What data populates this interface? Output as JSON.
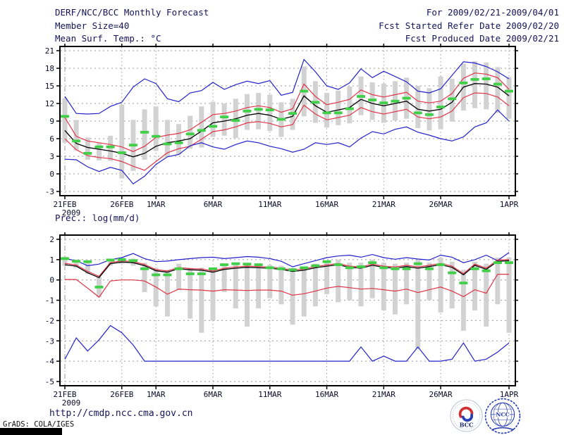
{
  "header": {
    "title": "DERF/NCC/BCC Monthly Forecast",
    "member_size": "Member Size=40",
    "for_period": "For 2009/02/21-2009/04/01",
    "fcst_started": "Fcst Started Refer Date 2009/02/20",
    "fcst_produced": "Fcst Produced Date 2009/02/21"
  },
  "footer": {
    "url": "http://cmdp.ncc.cma.gov.cn",
    "grads_credit": "GrADS: COLA/IGES",
    "bcc_label": "BCC",
    "ncc_label": "NCC"
  },
  "palette": {
    "blue": "#2222cc",
    "red": "#e03448",
    "black": "#000000",
    "green": "#3fd048",
    "gray": "#d2d2d2",
    "grid": "#9a9a9a",
    "frame": "#000000",
    "text": "#0a0a28",
    "header_text": "#14145a"
  },
  "x_axis": {
    "n_days": 40,
    "start_label_sub": "2009",
    "ticks": [
      {
        "label": "21FEB",
        "day": 0,
        "sub": "2009"
      },
      {
        "label": "26FEB",
        "day": 5
      },
      {
        "label": "1MAR",
        "day": 8
      },
      {
        "label": "6MAR",
        "day": 13
      },
      {
        "label": "11MAR",
        "day": 18
      },
      {
        "label": "16MAR",
        "day": 23
      },
      {
        "label": "21MAR",
        "day": 28
      },
      {
        "label": "26MAR",
        "day": 33
      },
      {
        "label": "1APR",
        "day": 39
      }
    ]
  },
  "chart_data": [
    {
      "type": "line",
      "name": "temperature",
      "title": "Mean Surf. Temp.: °C",
      "yticks": [
        21,
        18,
        15,
        12,
        9,
        6,
        3,
        0,
        -3
      ],
      "ylim": [
        -3,
        21
      ],
      "grid": true,
      "series": [
        {
          "name": "ensemble-max",
          "color": "blue",
          "style": "line",
          "values": [
            13.2,
            10.3,
            10.2,
            10.3,
            11.5,
            12.2,
            14.8,
            16.2,
            15.4,
            12.8,
            12.3,
            13.8,
            14.2,
            15.6,
            14.4,
            15.2,
            15.8,
            15.4,
            15.9,
            13.4,
            13.9,
            19.5,
            17.4,
            15.0,
            14.4,
            15.5,
            17.9,
            16.4,
            17.5,
            16.6,
            15.7,
            14.1,
            13.8,
            14.5,
            16.8,
            19.1,
            18.9,
            18.3,
            17.4,
            16.2
          ]
        },
        {
          "name": "spread-upper",
          "color": "red",
          "style": "line",
          "values": [
            9.6,
            6.4,
            5.6,
            5.3,
            5.0,
            4.6,
            3.8,
            4.7,
            6.2,
            6.6,
            6.9,
            7.5,
            8.8,
            10.1,
            10.3,
            10.7,
            11.3,
            11.6,
            11.3,
            10.5,
            11.1,
            15.3,
            13.2,
            11.8,
            12.2,
            12.7,
            14.3,
            13.5,
            13.1,
            13.5,
            13.9,
            12.4,
            12.1,
            12.4,
            13.7,
            16.3,
            17.2,
            17.0,
            16.4,
            14.4
          ]
        },
        {
          "name": "ensemble-mean",
          "color": "black",
          "style": "line",
          "values": [
            7.4,
            5.2,
            4.5,
            4.2,
            3.9,
            3.5,
            2.9,
            3.5,
            4.7,
            5.3,
            5.6,
            6.0,
            7.3,
            8.7,
            9.0,
            9.4,
            10.0,
            10.3,
            10.0,
            9.3,
            9.8,
            13.3,
            11.6,
            10.5,
            10.9,
            11.3,
            12.7,
            12.0,
            11.6,
            12.0,
            12.4,
            11.0,
            10.7,
            11.0,
            12.2,
            14.8,
            15.4,
            15.3,
            14.8,
            13.3
          ]
        },
        {
          "name": "spread-lower",
          "color": "red",
          "style": "line",
          "values": [
            6.0,
            4.1,
            3.1,
            2.8,
            2.6,
            2.1,
            1.3,
            0.6,
            2.1,
            3.6,
            4.3,
            4.7,
            5.9,
            7.2,
            7.5,
            8.0,
            8.7,
            8.9,
            8.6,
            8.0,
            8.4,
            11.7,
            10.2,
            9.2,
            9.6,
            10.0,
            11.3,
            10.6,
            10.2,
            10.6,
            11.0,
            9.7,
            9.4,
            9.7,
            10.7,
            13.0,
            13.8,
            13.7,
            13.1,
            11.6
          ]
        },
        {
          "name": "ensemble-min",
          "color": "blue",
          "style": "line",
          "values": [
            2.5,
            2.4,
            1.2,
            0.4,
            1.1,
            0.6,
            -1.7,
            -0.4,
            1.6,
            2.9,
            3.3,
            4.8,
            5.3,
            4.6,
            4.2,
            5.0,
            5.6,
            5.3,
            4.7,
            4.3,
            3.7,
            4.2,
            5.3,
            5.0,
            5.3,
            4.6,
            6.1,
            7.2,
            6.8,
            7.6,
            8.0,
            7.1,
            6.6,
            6.0,
            5.6,
            6.3,
            8.0,
            8.7,
            10.9,
            9.0
          ]
        },
        {
          "name": "observation-marker",
          "color": "green",
          "style": "dash-marker",
          "values": [
            9.8,
            5.6,
            3.5,
            4.6,
            4.6,
            3.6,
            4.9,
            7.1,
            6.4,
            5.1,
            5.3,
            6.8,
            7.4,
            8.1,
            9.7,
            9.1,
            10.7,
            11.0,
            10.9,
            9.3,
            10.3,
            14.1,
            12.2,
            10.4,
            10.4,
            11.1,
            13.2,
            12.6,
            12.1,
            12.4,
            12.9,
            10.4,
            10.1,
            11.4,
            12.8,
            15.5,
            16.1,
            16.2,
            15.3,
            14.1
          ]
        }
      ],
      "bars": {
        "name": "ensemble-spread",
        "color": "gray",
        "low": [
          5.3,
          4.0,
          2.4,
          2.3,
          2.2,
          -0.8,
          0.5,
          2.4,
          3.9,
          2.9,
          3.3,
          4.3,
          4.5,
          6.3,
          6.5,
          6.1,
          7.5,
          7.6,
          7.3,
          6.3,
          7.5,
          9.8,
          8.7,
          7.9,
          8.3,
          8.6,
          10.0,
          9.2,
          8.7,
          9.1,
          9.4,
          7.8,
          7.4,
          7.6,
          8.9,
          10.8,
          11.2,
          11.0,
          10.4,
          9.4
        ],
        "high": [
          12.9,
          9.2,
          6.2,
          5.3,
          6.5,
          11.8,
          9.2,
          11.0,
          11.5,
          9.2,
          8.5,
          9.9,
          11.5,
          12.3,
          12.0,
          12.8,
          13.6,
          13.8,
          13.5,
          12.2,
          12.8,
          18.3,
          15.8,
          13.8,
          14.2,
          14.9,
          16.6,
          15.6,
          15.4,
          15.8,
          16.4,
          15.0,
          14.6,
          16.6,
          16.2,
          18.8,
          19.2,
          19.0,
          18.2,
          16.5
        ]
      }
    },
    {
      "type": "line",
      "name": "precipitation",
      "title": "Prec.: log(mm/d)",
      "yticks": [
        2,
        1,
        0,
        -1,
        -2,
        -3,
        -4,
        -5
      ],
      "ylim": [
        -5,
        2
      ],
      "grid": true,
      "series": [
        {
          "name": "ensemble-max",
          "color": "blue",
          "style": "line",
          "values": [
            1.05,
            0.95,
            0.7,
            0.78,
            1.0,
            1.1,
            1.3,
            1.05,
            0.9,
            0.93,
            1.0,
            1.05,
            1.1,
            1.12,
            1.05,
            1.1,
            1.15,
            1.12,
            1.05,
            0.92,
            0.65,
            0.8,
            0.95,
            1.1,
            1.18,
            1.22,
            1.12,
            1.25,
            1.1,
            1.02,
            1.1,
            1.03,
            0.98,
            1.22,
            1.12,
            0.85,
            1.0,
            1.22,
            0.95,
            1.35
          ]
        },
        {
          "name": "spread-upper",
          "color": "red",
          "style": "line",
          "values": [
            0.82,
            0.74,
            0.42,
            0.18,
            0.86,
            0.94,
            0.91,
            0.76,
            0.51,
            0.44,
            0.61,
            0.56,
            0.54,
            0.44,
            0.58,
            0.64,
            0.68,
            0.66,
            0.64,
            0.58,
            0.48,
            0.54,
            0.66,
            0.74,
            0.81,
            0.68,
            0.64,
            0.78,
            0.68,
            0.64,
            0.72,
            0.64,
            0.72,
            0.81,
            0.68,
            0.31,
            0.78,
            0.58,
            0.98,
            1.0
          ]
        },
        {
          "name": "ensemble-mean",
          "color": "black",
          "style": "line",
          "values": [
            0.75,
            0.68,
            0.35,
            0.12,
            0.8,
            0.88,
            0.85,
            0.7,
            0.45,
            0.38,
            0.55,
            0.5,
            0.48,
            0.38,
            0.52,
            0.58,
            0.62,
            0.6,
            0.58,
            0.52,
            0.42,
            0.48,
            0.6,
            0.68,
            0.75,
            0.62,
            0.58,
            0.72,
            0.62,
            0.58,
            0.66,
            0.58,
            0.66,
            0.75,
            0.62,
            0.25,
            0.72,
            0.52,
            0.92,
            0.95
          ]
        },
        {
          "name": "spread-lower",
          "color": "red",
          "style": "line",
          "values": [
            0.02,
            0.02,
            -0.4,
            -0.85,
            -0.05,
            0.0,
            0.0,
            -0.05,
            -0.35,
            -0.7,
            -0.45,
            -0.48,
            -0.5,
            -0.55,
            -0.48,
            -0.5,
            -0.52,
            -0.5,
            -0.5,
            -0.55,
            -0.75,
            -0.68,
            -0.55,
            -0.4,
            -0.32,
            -0.38,
            -0.45,
            -0.42,
            -0.48,
            -0.55,
            -0.45,
            -0.62,
            -0.48,
            -0.35,
            -0.55,
            -0.82,
            -0.48,
            -0.65,
            0.28,
            0.28
          ]
        },
        {
          "name": "ensemble-min",
          "color": "blue",
          "style": "line",
          "values": [
            -3.9,
            -2.85,
            -3.5,
            -2.95,
            -2.25,
            -2.6,
            -3.2,
            -4.0,
            -4.0,
            -4.0,
            -4.0,
            -4.0,
            -4.0,
            -4.0,
            -4.0,
            -4.0,
            -4.0,
            -4.0,
            -4.0,
            -4.0,
            -4.0,
            -4.0,
            -4.0,
            -4.0,
            -4.0,
            -4.0,
            -3.3,
            -4.0,
            -3.75,
            -4.0,
            -4.0,
            -3.3,
            -4.0,
            -4.0,
            -3.9,
            -3.1,
            -4.0,
            -3.9,
            -3.55,
            -3.1
          ]
        },
        {
          "name": "observation-marker",
          "color": "green",
          "style": "dash-marker",
          "values": [
            1.05,
            0.92,
            0.9,
            -0.35,
            0.98,
            1.0,
            0.95,
            0.55,
            0.25,
            0.25,
            0.55,
            0.3,
            0.3,
            0.55,
            0.75,
            0.8,
            0.78,
            0.75,
            0.6,
            0.55,
            0.5,
            0.6,
            0.7,
            0.9,
            0.75,
            0.6,
            0.65,
            0.85,
            0.6,
            0.55,
            0.55,
            0.8,
            0.55,
            0.75,
            0.35,
            -0.15,
            0.55,
            0.45,
            0.85,
            0.85
          ]
        }
      ],
      "bars": {
        "name": "ensemble-spread",
        "color": "gray",
        "low": [
          0.7,
          0.6,
          0.3,
          -0.85,
          0.7,
          0.8,
          0.7,
          -0.6,
          -1.3,
          -1.8,
          -0.5,
          -1.9,
          -2.6,
          -2.0,
          -0.6,
          -1.4,
          -2.3,
          -1.4,
          -0.9,
          -1.2,
          -2.2,
          -1.8,
          -1.3,
          -0.7,
          -1.1,
          -1.0,
          -1.3,
          -0.9,
          -1.5,
          -1.7,
          -1.2,
          -3.4,
          -1.0,
          -1.6,
          -1.4,
          -2.5,
          -1.5,
          -2.3,
          -1.2,
          -2.6
        ],
        "high": [
          1.15,
          1.0,
          0.95,
          0.15,
          1.05,
          1.1,
          1.05,
          0.85,
          0.6,
          0.5,
          0.8,
          0.6,
          0.6,
          0.6,
          0.75,
          0.8,
          0.8,
          0.8,
          0.75,
          0.7,
          0.6,
          0.65,
          0.8,
          0.95,
          1.0,
          0.85,
          0.85,
          1.0,
          0.85,
          0.8,
          0.85,
          1.0,
          0.85,
          1.1,
          0.9,
          0.5,
          0.9,
          0.8,
          1.1,
          1.1
        ]
      }
    }
  ]
}
